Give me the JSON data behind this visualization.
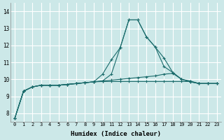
{
  "xlabel": "Humidex (Indice chaleur)",
  "background_color": "#cce8e8",
  "grid_color": "#b0d8d8",
  "line_color": "#1a6b6b",
  "xlim": [
    -0.5,
    23.5
  ],
  "ylim": [
    7.5,
    14.5
  ],
  "xticks": [
    0,
    1,
    2,
    3,
    4,
    5,
    6,
    7,
    8,
    9,
    10,
    11,
    12,
    13,
    14,
    15,
    16,
    17,
    18,
    19,
    20,
    21,
    22,
    23
  ],
  "yticks": [
    8,
    9,
    10,
    11,
    12,
    13,
    14
  ],
  "series": [
    [
      7.7,
      9.3,
      9.55,
      9.65,
      9.65,
      9.65,
      9.7,
      9.75,
      9.8,
      9.85,
      10.3,
      11.15,
      11.85,
      13.5,
      13.5,
      12.5,
      11.9,
      11.25,
      10.4,
      10.0,
      9.85,
      9.75,
      9.75,
      9.75
    ],
    [
      7.7,
      9.3,
      9.55,
      9.65,
      9.65,
      9.65,
      9.7,
      9.75,
      9.8,
      9.85,
      9.9,
      10.3,
      11.85,
      13.5,
      13.5,
      12.5,
      11.9,
      10.75,
      10.4,
      10.0,
      9.85,
      9.75,
      9.75,
      9.75
    ],
    [
      7.7,
      9.3,
      9.55,
      9.65,
      9.65,
      9.65,
      9.7,
      9.75,
      9.8,
      9.85,
      9.9,
      9.95,
      10.0,
      10.05,
      10.1,
      10.15,
      10.2,
      10.3,
      10.35,
      10.0,
      9.9,
      9.75,
      9.75,
      9.75
    ],
    [
      7.7,
      9.3,
      9.55,
      9.65,
      9.65,
      9.65,
      9.7,
      9.75,
      9.8,
      9.85,
      9.87,
      9.87,
      9.87,
      9.87,
      9.87,
      9.87,
      9.87,
      9.87,
      9.87,
      9.87,
      9.87,
      9.75,
      9.75,
      9.75
    ]
  ]
}
